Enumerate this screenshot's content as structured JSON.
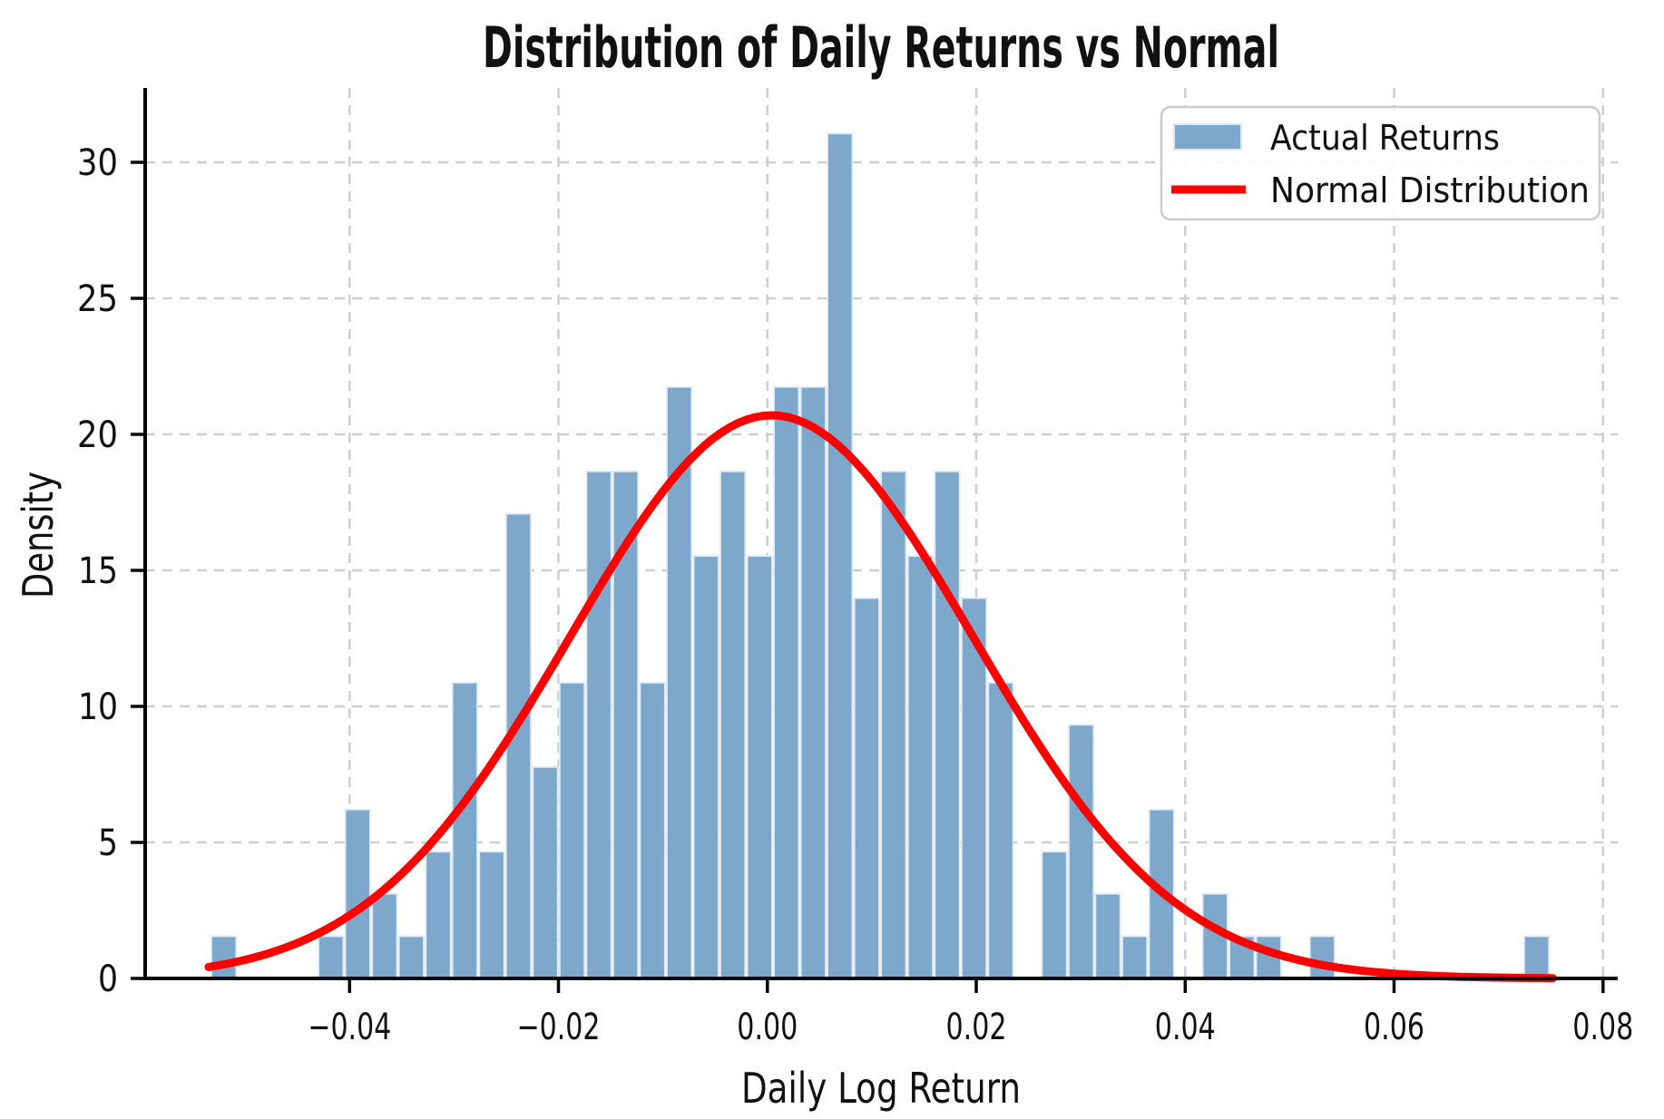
{
  "title": "Distribution of Daily Returns vs Normal",
  "x_axis": {
    "label": "Daily Log Return",
    "tick_labels": [
      "−0.04",
      "−0.02",
      "0.00",
      "0.02",
      "0.04",
      "0.06",
      "0.08"
    ],
    "tick_values": [
      -0.04,
      -0.02,
      0.0,
      0.02,
      0.04,
      0.06,
      0.08
    ]
  },
  "y_axis": {
    "label": "Density",
    "tick_labels": [
      "0",
      "5",
      "10",
      "15",
      "20",
      "25",
      "30"
    ],
    "tick_values": [
      0,
      5,
      10,
      15,
      20,
      25,
      30
    ]
  },
  "legend": {
    "items": [
      {
        "label": "Actual Returns",
        "marker": "patch"
      },
      {
        "label": "Normal Distribution",
        "marker": "line"
      }
    ]
  },
  "colors": {
    "bar_fill": "#7da8cb",
    "bar_edge": "#e0eaf5",
    "curve": "#ff0000",
    "grid": "#cfcfcf",
    "spine": "#000000",
    "legend_border": "#cbcbcb",
    "background": "#ffffff"
  },
  "chart_data": {
    "type": "bar",
    "subtype": "histogram_with_normal_overlay",
    "title": "Distribution of Daily Returns vs Normal",
    "xlabel": "Daily Log Return",
    "ylabel": "Density",
    "xlim": [
      -0.0597,
      0.0815
    ],
    "ylim": [
      0,
      32.7
    ],
    "grid": true,
    "grid_style": "dashed",
    "legend_position": "upper right",
    "legend": [
      "Actual Returns",
      "Normal Distribution"
    ],
    "bin_width": 0.0025645,
    "bars_format": "[bin_center, density]",
    "bars": [
      [
        -0.05204,
        1.55
      ],
      [
        -0.04178,
        1.55
      ],
      [
        -0.03922,
        6.21
      ],
      [
        -0.03665,
        3.11
      ],
      [
        -0.03409,
        1.55
      ],
      [
        -0.03152,
        4.66
      ],
      [
        -0.02896,
        10.87
      ],
      [
        -0.02639,
        4.66
      ],
      [
        -0.02383,
        17.08
      ],
      [
        -0.02126,
        7.77
      ],
      [
        -0.0187,
        10.87
      ],
      [
        -0.01613,
        18.64
      ],
      [
        -0.01357,
        18.64
      ],
      [
        -0.011,
        10.87
      ],
      [
        -0.00844,
        21.74
      ],
      [
        -0.00587,
        15.53
      ],
      [
        -0.00331,
        18.64
      ],
      [
        -0.00074,
        15.53
      ],
      [
        0.00182,
        21.74
      ],
      [
        0.00439,
        21.74
      ],
      [
        0.00695,
        31.06
      ],
      [
        0.00952,
        13.98
      ],
      [
        0.01208,
        18.64
      ],
      [
        0.01465,
        15.53
      ],
      [
        0.01721,
        18.64
      ],
      [
        0.01978,
        13.98
      ],
      [
        0.02234,
        10.87
      ],
      [
        0.02747,
        4.66
      ],
      [
        0.03004,
        9.32
      ],
      [
        0.0326,
        3.11
      ],
      [
        0.03517,
        1.55
      ],
      [
        0.03773,
        6.21
      ],
      [
        0.04286,
        3.11
      ],
      [
        0.04543,
        1.55
      ],
      [
        0.04799,
        1.55
      ],
      [
        0.05312,
        1.55
      ],
      [
        0.07364,
        1.55
      ]
    ],
    "series": [
      {
        "name": "Actual Returns",
        "type": "histogram"
      },
      {
        "name": "Normal Distribution",
        "type": "line"
      }
    ],
    "normal_curve": {
      "mean": 0.0004,
      "sigma": 0.0193,
      "peak_density": 20.7,
      "x_range": [
        -0.0535,
        0.0752
      ]
    }
  }
}
